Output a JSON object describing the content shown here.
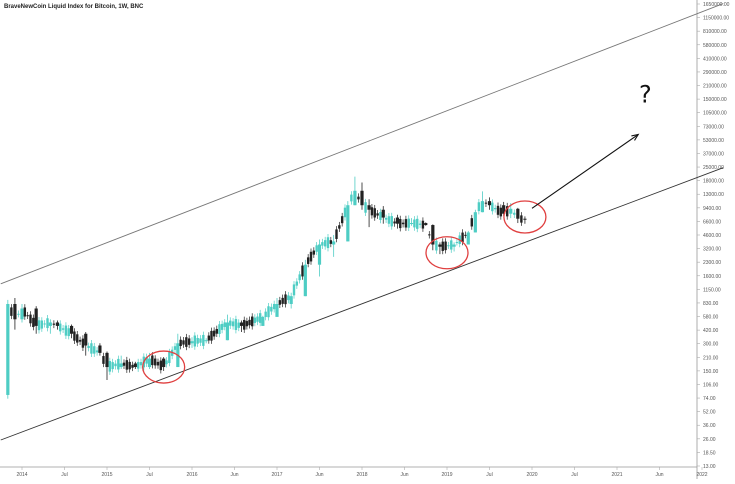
{
  "chart_data": {
    "type": "candlestick",
    "title": "BraveNewCoin Liquid Index for Bitcoin, 1W, BNC",
    "price_axis": {
      "scale": "log",
      "labels": [
        "1650000.00",
        "1150000.00",
        "810000.00",
        "580000.00",
        "410000.00",
        "290000.00",
        "210000.00",
        "150000.00",
        "105000.00",
        "73000.00",
        "53000.00",
        "37000.00",
        "25000.00",
        "18000.00",
        "13000.00",
        "9400.00",
        "6600.00",
        "4600.00",
        "3200.00",
        "2300.00",
        "1600.00",
        "1150.00",
        "830.00",
        "580.00",
        "420.00",
        "300.00",
        "210.00",
        "150.00",
        "106.00",
        "74.00",
        "52.00",
        "36.00",
        "26.00",
        "18.50",
        "13.00"
      ]
    },
    "time_axis": {
      "labels": [
        "2014",
        "Jul",
        "2015",
        "Jul",
        "2016",
        "Jun",
        "2017",
        "Jun",
        "2018",
        "Jun",
        "2019",
        "Jul",
        "2020",
        "Jul",
        "2021",
        "Jun",
        "2022"
      ]
    },
    "series": {
      "up_color": "#4ecdc4",
      "down_color": "#222222",
      "ohlc": [
        [
          "2013-11",
          120,
          1100,
          110,
          1000
        ],
        [
          "2013-12",
          1000,
          1150,
          550,
          700
        ],
        [
          "2014-01",
          700,
          1000,
          650,
          900
        ],
        [
          "2014-03",
          900,
          950,
          500,
          600
        ],
        [
          "2014-05",
          600,
          700,
          500,
          650
        ],
        [
          "2014-06",
          650,
          680,
          550,
          600
        ],
        [
          "2014-08",
          600,
          620,
          450,
          500
        ],
        [
          "2014-10",
          500,
          520,
          300,
          380
        ],
        [
          "2014-12",
          380,
          400,
          300,
          320
        ],
        [
          "2015-01",
          320,
          330,
          170,
          230
        ],
        [
          "2015-03",
          230,
          300,
          220,
          250
        ],
        [
          "2015-05",
          250,
          260,
          220,
          230
        ],
        [
          "2015-07",
          230,
          320,
          220,
          280
        ],
        [
          "2015-09",
          280,
          290,
          210,
          230
        ],
        [
          "2015-11",
          230,
          500,
          230,
          400
        ],
        [
          "2016-01",
          400,
          460,
          360,
          420
        ],
        [
          "2016-03",
          420,
          450,
          400,
          430
        ],
        [
          "2016-06",
          430,
          780,
          430,
          650
        ],
        [
          "2016-08",
          650,
          680,
          520,
          600
        ],
        [
          "2016-11",
          600,
          760,
          600,
          740
        ],
        [
          "2017-01",
          740,
          1150,
          750,
          1000
        ],
        [
          "2017-03",
          1000,
          1300,
          900,
          1200
        ],
        [
          "2017-05",
          1200,
          2800,
          1200,
          2500
        ],
        [
          "2017-07",
          2500,
          4500,
          1900,
          4000
        ],
        [
          "2017-09",
          4000,
          5000,
          3000,
          4300
        ],
        [
          "2017-11",
          4300,
          11000,
          4300,
          10000
        ],
        [
          "2017-12",
          10000,
          19500,
          10000,
          14000
        ],
        [
          "2018-01",
          14000,
          17000,
          9000,
          10000
        ],
        [
          "2018-02",
          10000,
          11500,
          6000,
          9000
        ],
        [
          "2018-04",
          9000,
          9800,
          6500,
          7500
        ],
        [
          "2018-06",
          7500,
          8000,
          5800,
          6500
        ],
        [
          "2018-08",
          6500,
          7400,
          6200,
          6600
        ],
        [
          "2018-10",
          6600,
          6700,
          6200,
          6300
        ],
        [
          "2018-11",
          6300,
          6400,
          3500,
          4000
        ],
        [
          "2018-12",
          4000,
          4200,
          3200,
          3800
        ],
        [
          "2019-02",
          3800,
          4200,
          3400,
          4000
        ],
        [
          "2019-04",
          4000,
          5500,
          4000,
          5300
        ],
        [
          "2019-05",
          5300,
          9000,
          5300,
          8500
        ],
        [
          "2019-06",
          8500,
          13800,
          8500,
          11000
        ],
        [
          "2019-07",
          11000,
          12000,
          9000,
          10000
        ],
        [
          "2019-09",
          10000,
          10800,
          7800,
          8200
        ],
        [
          "2019-10",
          8200,
          10500,
          7400,
          9200
        ],
        [
          "2019-11",
          9200,
          9400,
          6600,
          7300
        ],
        [
          "2019-12",
          7300,
          7700,
          6500,
          7200
        ]
      ]
    },
    "drawings": {
      "upper_channel": [
        [
          "2013-10",
          1600
        ],
        [
          "2022-04",
          1100000
        ]
      ],
      "lower_channel": [
        [
          "2013-10",
          42
        ],
        [
          "2022-04",
          24000
        ]
      ],
      "arrow": [
        [
          "2020-01",
          9300
        ],
        [
          "2021-04",
          52000
        ]
      ],
      "circles": [
        {
          "date": "2015-09",
          "price": 230
        },
        {
          "date": "2019-01",
          "price": 3300
        },
        {
          "date": "2019-12",
          "price": 7600
        }
      ],
      "question_mark": {
        "text": "?",
        "date": "2021-05",
        "price": 110000
      }
    }
  }
}
